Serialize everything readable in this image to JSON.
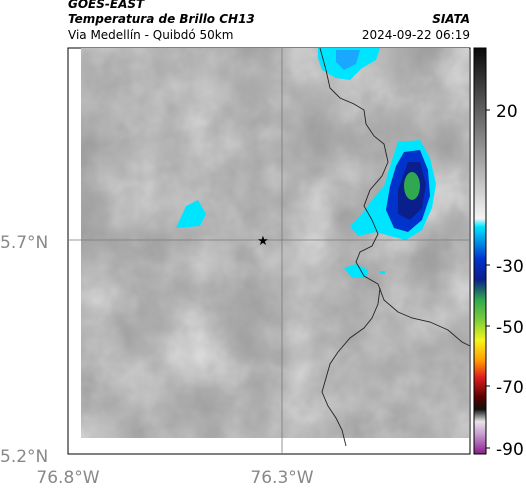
{
  "header": {
    "satellite": "GOES-EAST",
    "product": "Temperatura de Brillo CH13",
    "region": "Via Medellín - Quibdó 50km",
    "org": "SIATA",
    "datetime": "2024-09-22 06:19"
  },
  "axes": {
    "lat_labels": [
      "5.7°N",
      "5.2°N"
    ],
    "lon_labels": [
      "76.8°W",
      "76.3°W"
    ]
  },
  "colorbar": {
    "tick_labels": [
      "20",
      "-30",
      "-50",
      "-70",
      "-90"
    ]
  },
  "colors": {
    "cold_cyan": "#00e5ff",
    "deep_blue": "#0a1f8c",
    "core_green": "#2fa84f"
  },
  "markers": {
    "station": "star-icon"
  }
}
